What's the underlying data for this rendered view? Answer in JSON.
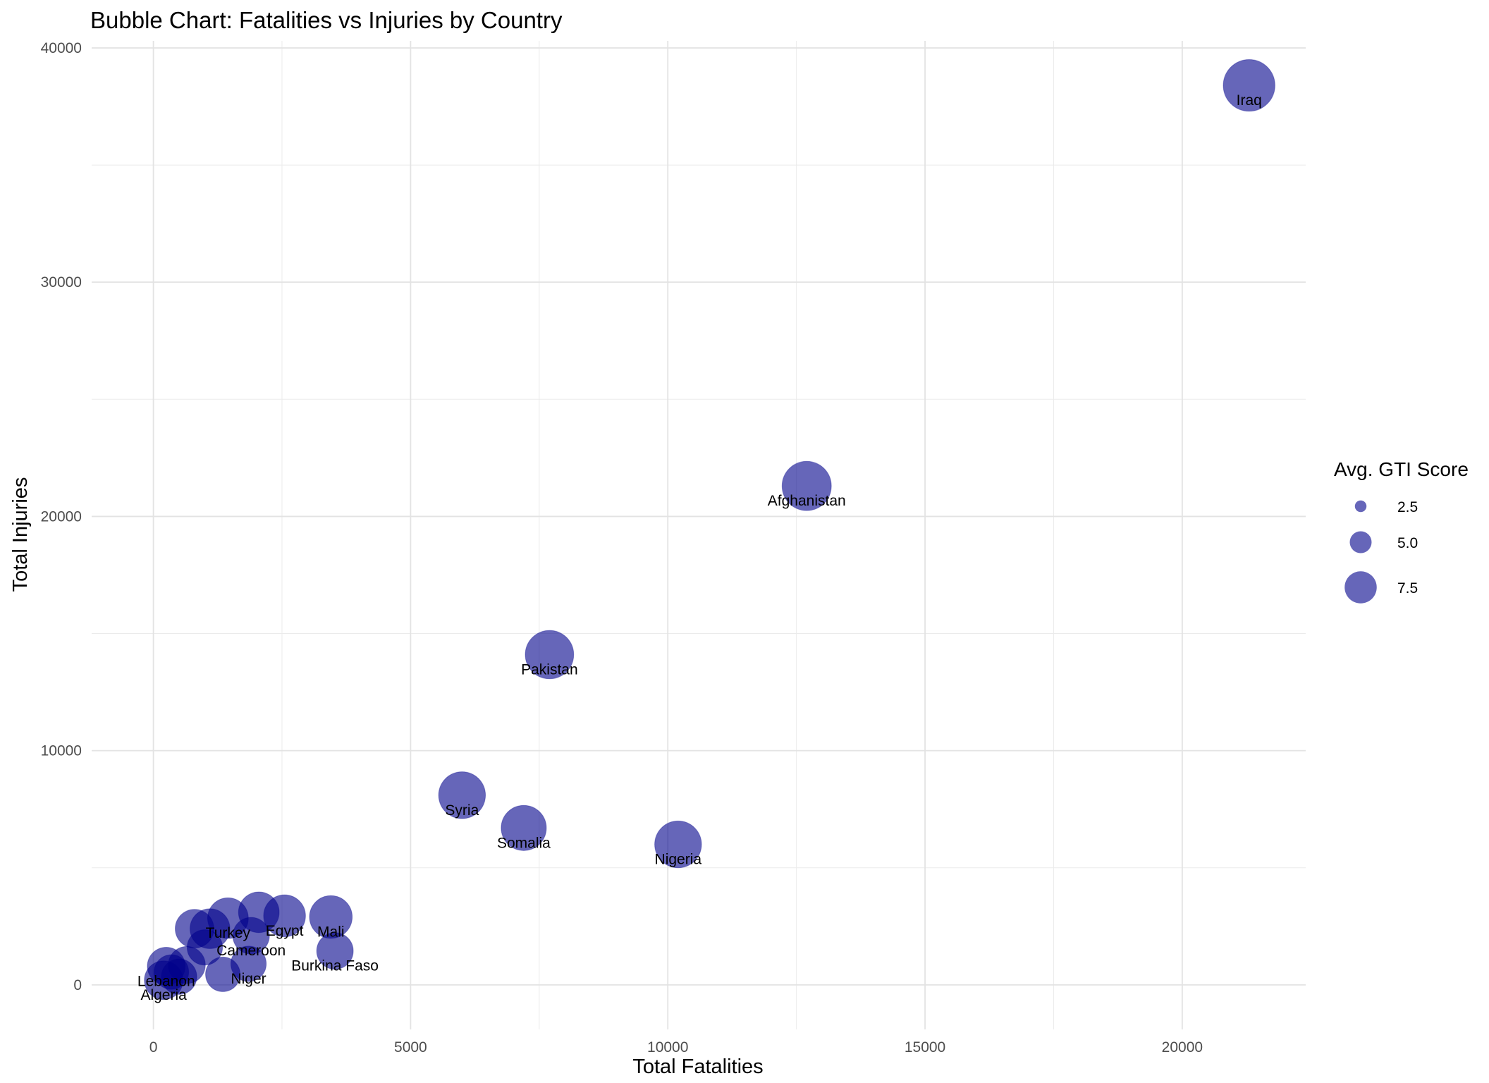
{
  "chart_data": {
    "type": "scatter",
    "title": "Bubble Chart: Fatalities vs Injuries by Country",
    "xlabel": "Total Fatalities",
    "ylabel": "Total Injuries",
    "xlim": [
      -1200,
      22400
    ],
    "ylim": [
      -1900,
      40300
    ],
    "x_ticks": [
      0,
      5000,
      10000,
      15000,
      20000
    ],
    "y_ticks": [
      0,
      10000,
      20000,
      30000,
      40000
    ],
    "grid": true,
    "point_color": "#00008B",
    "point_opacity": 0.6,
    "legend": {
      "title": "Avg. GTI Score",
      "position": "right",
      "entries": [
        {
          "label": "2.5",
          "value": 2.5
        },
        {
          "label": "5.0",
          "value": 5.0
        },
        {
          "label": "7.5",
          "value": 7.5
        }
      ]
    },
    "points": [
      {
        "label": "Iraq",
        "x": 21300,
        "y": 38400,
        "size": 9.2
      },
      {
        "label": "Afghanistan",
        "x": 12700,
        "y": 21300,
        "size": 8.6
      },
      {
        "label": "Pakistan",
        "x": 7700,
        "y": 14100,
        "size": 8.4
      },
      {
        "label": "Syria",
        "x": 6000,
        "y": 8100,
        "size": 8.0
      },
      {
        "label": "Somalia",
        "x": 7200,
        "y": 6700,
        "size": 7.6
      },
      {
        "label": "Nigeria",
        "x": 10200,
        "y": 6000,
        "size": 8.0
      },
      {
        "label": "Mali",
        "x": 3450,
        "y": 2900,
        "size": 7.0
      },
      {
        "label": "Egypt",
        "x": 2550,
        "y": 2950,
        "size": 6.8
      },
      {
        "label": "",
        "x": 2050,
        "y": 3100,
        "size": 6.5
      },
      {
        "label": "Burkina Faso",
        "x": 3530,
        "y": 1450,
        "size": 5.5
      },
      {
        "label": "Turkey",
        "x": 1450,
        "y": 2850,
        "size": 6.5
      },
      {
        "label": "",
        "x": 1100,
        "y": 2400,
        "size": 6.3
      },
      {
        "label": "",
        "x": 800,
        "y": 2400,
        "size": 6.0
      },
      {
        "label": "Cameroon",
        "x": 1900,
        "y": 2100,
        "size": 5.5
      },
      {
        "label": "",
        "x": 1000,
        "y": 1600,
        "size": 5.2
      },
      {
        "label": "Niger",
        "x": 1850,
        "y": 900,
        "size": 5.2
      },
      {
        "label": "",
        "x": 1350,
        "y": 450,
        "size": 5.0
      },
      {
        "label": "",
        "x": 650,
        "y": 850,
        "size": 5.6
      },
      {
        "label": "",
        "x": 500,
        "y": 350,
        "size": 5.2
      },
      {
        "label": "Lebanon",
        "x": 250,
        "y": 800,
        "size": 5.8
      },
      {
        "label": "Algeria",
        "x": 200,
        "y": 200,
        "size": 6.0
      },
      {
        "label": "",
        "x": 350,
        "y": 550,
        "size": 5.0
      }
    ]
  }
}
